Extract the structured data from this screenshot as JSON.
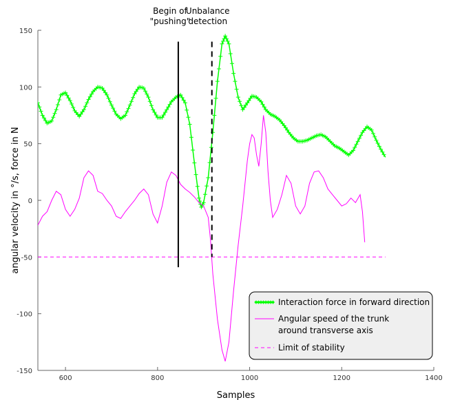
{
  "chart_data": {
    "type": "line",
    "title": "",
    "xlabel": "Samples",
    "ylabel": "angular velocity in °/s, force in N",
    "xlim": [
      540,
      1400
    ],
    "ylim": [
      -150,
      150
    ],
    "xticks": [
      600,
      800,
      1000,
      1200,
      1400
    ],
    "yticks": [
      -150,
      -100,
      -50,
      0,
      50,
      100,
      150
    ],
    "grid": false,
    "legend_position": "bottom-right",
    "series": [
      {
        "name": "Interaction force in forward direction",
        "color": "#00ff00",
        "marker": "plus",
        "points": [
          [
            540,
            86
          ],
          [
            550,
            75
          ],
          [
            560,
            68
          ],
          [
            570,
            70
          ],
          [
            580,
            80
          ],
          [
            590,
            93
          ],
          [
            600,
            95
          ],
          [
            610,
            88
          ],
          [
            620,
            79
          ],
          [
            630,
            74
          ],
          [
            640,
            80
          ],
          [
            650,
            89
          ],
          [
            660,
            96
          ],
          [
            670,
            100
          ],
          [
            680,
            99
          ],
          [
            690,
            93
          ],
          [
            700,
            84
          ],
          [
            710,
            76
          ],
          [
            720,
            72
          ],
          [
            730,
            75
          ],
          [
            740,
            84
          ],
          [
            750,
            94
          ],
          [
            760,
            100
          ],
          [
            770,
            99
          ],
          [
            780,
            91
          ],
          [
            790,
            80
          ],
          [
            800,
            73
          ],
          [
            810,
            73
          ],
          [
            820,
            80
          ],
          [
            830,
            87
          ],
          [
            840,
            91
          ],
          [
            850,
            93
          ],
          [
            860,
            86
          ],
          [
            870,
            67
          ],
          [
            880,
            33
          ],
          [
            890,
            2
          ],
          [
            895,
            -6
          ],
          [
            900,
            -2
          ],
          [
            910,
            20
          ],
          [
            920,
            60
          ],
          [
            930,
            105
          ],
          [
            940,
            138
          ],
          [
            947,
            145
          ],
          [
            955,
            138
          ],
          [
            965,
            112
          ],
          [
            975,
            91
          ],
          [
            985,
            80
          ],
          [
            995,
            86
          ],
          [
            1005,
            92
          ],
          [
            1015,
            91
          ],
          [
            1025,
            87
          ],
          [
            1035,
            80
          ],
          [
            1045,
            76
          ],
          [
            1055,
            74
          ],
          [
            1065,
            71
          ],
          [
            1075,
            66
          ],
          [
            1085,
            60
          ],
          [
            1095,
            55
          ],
          [
            1105,
            52
          ],
          [
            1115,
            52
          ],
          [
            1125,
            53
          ],
          [
            1135,
            55
          ],
          [
            1145,
            57
          ],
          [
            1155,
            58
          ],
          [
            1165,
            56
          ],
          [
            1175,
            52
          ],
          [
            1185,
            48
          ],
          [
            1195,
            46
          ],
          [
            1205,
            43
          ],
          [
            1215,
            40
          ],
          [
            1225,
            44
          ],
          [
            1235,
            52
          ],
          [
            1245,
            60
          ],
          [
            1255,
            65
          ],
          [
            1265,
            62
          ],
          [
            1275,
            53
          ],
          [
            1285,
            45
          ],
          [
            1295,
            38
          ]
        ]
      },
      {
        "name": "Angular speed of the trunk around transverse axis",
        "color": "#ff00ff",
        "marker": "none",
        "points": [
          [
            540,
            -22
          ],
          [
            550,
            -14
          ],
          [
            560,
            -10
          ],
          [
            570,
            0
          ],
          [
            580,
            8
          ],
          [
            590,
            5
          ],
          [
            600,
            -8
          ],
          [
            610,
            -14
          ],
          [
            620,
            -8
          ],
          [
            630,
            2
          ],
          [
            640,
            20
          ],
          [
            650,
            26
          ],
          [
            660,
            22
          ],
          [
            670,
            8
          ],
          [
            680,
            6
          ],
          [
            690,
            0
          ],
          [
            700,
            -5
          ],
          [
            710,
            -14
          ],
          [
            720,
            -16
          ],
          [
            730,
            -10
          ],
          [
            740,
            -5
          ],
          [
            750,
            0
          ],
          [
            760,
            6
          ],
          [
            770,
            10
          ],
          [
            780,
            5
          ],
          [
            790,
            -12
          ],
          [
            800,
            -20
          ],
          [
            810,
            -5
          ],
          [
            820,
            16
          ],
          [
            830,
            25
          ],
          [
            840,
            22
          ],
          [
            850,
            14
          ],
          [
            860,
            10
          ],
          [
            870,
            7
          ],
          [
            880,
            3
          ],
          [
            890,
            -2
          ],
          [
            900,
            -5
          ],
          [
            910,
            -15
          ],
          [
            915,
            -35
          ],
          [
            920,
            -65
          ],
          [
            930,
            -105
          ],
          [
            940,
            -132
          ],
          [
            947,
            -142
          ],
          [
            955,
            -125
          ],
          [
            965,
            -80
          ],
          [
            975,
            -40
          ],
          [
            985,
            -5
          ],
          [
            995,
            35
          ],
          [
            1000,
            50
          ],
          [
            1005,
            58
          ],
          [
            1010,
            55
          ],
          [
            1015,
            40
          ],
          [
            1020,
            30
          ],
          [
            1025,
            50
          ],
          [
            1030,
            75
          ],
          [
            1035,
            60
          ],
          [
            1040,
            25
          ],
          [
            1045,
            0
          ],
          [
            1050,
            -15
          ],
          [
            1060,
            -8
          ],
          [
            1070,
            5
          ],
          [
            1080,
            22
          ],
          [
            1090,
            15
          ],
          [
            1100,
            -5
          ],
          [
            1110,
            -12
          ],
          [
            1120,
            -5
          ],
          [
            1130,
            15
          ],
          [
            1140,
            25
          ],
          [
            1150,
            26
          ],
          [
            1160,
            20
          ],
          [
            1170,
            10
          ],
          [
            1180,
            5
          ],
          [
            1190,
            0
          ],
          [
            1200,
            -5
          ],
          [
            1210,
            -3
          ],
          [
            1220,
            2
          ],
          [
            1230,
            -2
          ],
          [
            1240,
            5
          ],
          [
            1245,
            -10
          ],
          [
            1250,
            -37
          ]
        ]
      },
      {
        "name": "Limit of stability",
        "color": "#ff00ff",
        "style": "dashed",
        "points": [
          [
            540,
            -50
          ],
          [
            1295,
            -50
          ]
        ]
      }
    ],
    "vertical_lines": [
      {
        "x": 845,
        "y_from": -59,
        "y_to": 140,
        "style": "solid",
        "label_lines": [
          "Begin of",
          "\"pushing\""
        ]
      },
      {
        "x": 918,
        "y_from": -50,
        "y_to": 140,
        "style": "dashed",
        "label_lines": [
          "Unbalance",
          "detection"
        ]
      }
    ]
  }
}
